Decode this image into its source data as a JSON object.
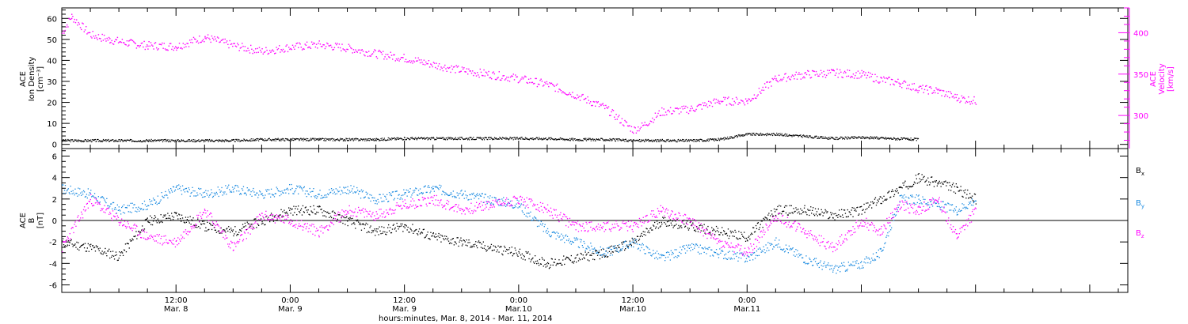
{
  "chart_data": [
    {
      "type": "scatter",
      "panel": "top",
      "ylabel_left": [
        "ACE",
        "Ion Density",
        "[cm⁻³]"
      ],
      "ylabel_right": [
        "ACE",
        "Velocity",
        "[km/s]"
      ],
      "ylim_left": [
        -2,
        65
      ],
      "yticks_left": [
        "0",
        "10",
        "20",
        "30",
        "40",
        "50",
        "60"
      ],
      "ylim_right": [
        260,
        430
      ],
      "yticks_right": [
        "300",
        "350",
        "400"
      ],
      "series": [
        {
          "axis": "left",
          "color": "#000000",
          "x": [
            0,
            3,
            6,
            9,
            12,
            15,
            18,
            21,
            24,
            27,
            30,
            33,
            36,
            39,
            42,
            45,
            48,
            51,
            54,
            57,
            60,
            63,
            66,
            69,
            72,
            75,
            78,
            81,
            84,
            87,
            90
          ],
          "values": [
            2,
            2,
            2,
            2,
            2,
            2,
            2,
            2.5,
            2.5,
            2.5,
            2.5,
            2.5,
            3,
            3,
            3,
            3,
            3,
            3,
            2.5,
            2.5,
            2,
            2,
            2,
            2.5,
            5,
            5,
            4,
            3,
            3.5,
            3,
            2.5
          ]
        },
        {
          "axis": "right",
          "color": "#ff00ff",
          "x": [
            0,
            1,
            3,
            5,
            7,
            9,
            12,
            15,
            18,
            21,
            24,
            27,
            30,
            33,
            36,
            39,
            42,
            45,
            48,
            51,
            54,
            57,
            60,
            61,
            63,
            66,
            69,
            72,
            75,
            78,
            81,
            84,
            86,
            88,
            90,
            92,
            94,
            96
          ],
          "values": [
            400,
            420,
            398,
            392,
            388,
            385,
            384,
            395,
            385,
            378,
            383,
            386,
            382,
            375,
            370,
            362,
            355,
            350,
            345,
            338,
            325,
            310,
            283,
            288,
            305,
            308,
            318,
            318,
            345,
            350,
            352,
            350,
            344,
            340,
            333,
            330,
            322,
            318
          ]
        }
      ]
    },
    {
      "type": "scatter",
      "panel": "bottom",
      "ylabel_left": [
        "ACE",
        "B",
        "[nT]"
      ],
      "ylim": [
        -6.7,
        6.7
      ],
      "yticks": [
        "-6",
        "-4",
        "-2",
        "0",
        "2",
        "4",
        "6"
      ],
      "legend": [
        "Bx",
        "By",
        "Bz"
      ],
      "series": [
        {
          "name": "Bx",
          "color": "#000000",
          "x": [
            0,
            3,
            6,
            9,
            12,
            15,
            18,
            21,
            24,
            27,
            30,
            33,
            36,
            39,
            42,
            45,
            48,
            51,
            54,
            57,
            60,
            63,
            66,
            69,
            72,
            75,
            78,
            81,
            84,
            86,
            88,
            90,
            92,
            94,
            96
          ],
          "values": [
            -2,
            -2.5,
            -3.3,
            0,
            0.5,
            -0.5,
            -1,
            0,
            1,
            1,
            0,
            -1,
            -0.5,
            -1.5,
            -2,
            -2.5,
            -3,
            -4,
            -3.5,
            -3,
            -2,
            0,
            -0.5,
            -1,
            -1.5,
            1,
            1,
            0.5,
            1,
            2,
            3,
            4,
            3.5,
            3,
            2
          ]
        },
        {
          "name": "By",
          "color": "#1a8ae0",
          "x": [
            0,
            3,
            6,
            9,
            12,
            15,
            18,
            21,
            24,
            27,
            30,
            33,
            36,
            39,
            42,
            45,
            48,
            51,
            54,
            57,
            60,
            63,
            66,
            69,
            72,
            75,
            78,
            81,
            84,
            86,
            88,
            90,
            92,
            94,
            96
          ],
          "values": [
            3,
            2.5,
            1,
            1.5,
            3,
            2.5,
            3,
            2.5,
            3,
            2.5,
            3,
            2,
            2.5,
            3,
            2.5,
            2,
            1.5,
            -1,
            -2,
            -3,
            -2,
            -3.5,
            -2.5,
            -3,
            -3.5,
            -2,
            -3.5,
            -4.5,
            -4,
            -3,
            2,
            2,
            1.5,
            1,
            2
          ]
        },
        {
          "name": "Bz",
          "color": "#ff00ff",
          "x": [
            0,
            3,
            6,
            9,
            12,
            15,
            18,
            21,
            24,
            27,
            30,
            33,
            36,
            39,
            42,
            45,
            48,
            51,
            54,
            57,
            60,
            63,
            66,
            69,
            72,
            75,
            78,
            81,
            84,
            86,
            88,
            90,
            92,
            94,
            96
          ],
          "values": [
            -2.5,
            2,
            0,
            -1.5,
            -2,
            1,
            -2.5,
            0.5,
            0,
            -1,
            1,
            0.5,
            1.5,
            2,
            1,
            1.5,
            2,
            1,
            -0.5,
            -0.5,
            -0.5,
            1,
            0,
            -2,
            -3,
            0.5,
            -1,
            -2.5,
            0,
            -1,
            1.5,
            1,
            2,
            -1.5,
            1
          ]
        }
      ]
    }
  ],
  "axis": {
    "x_ticks": [
      {
        "time": "12:00",
        "date": "Mar. 8",
        "x": 12
      },
      {
        "time": "0:00",
        "date": "Mar. 9",
        "x": 24
      },
      {
        "time": "12:00",
        "date": "Mar. 9",
        "x": 36
      },
      {
        "time": "0:00",
        "date": "Mar.10",
        "x": 48
      },
      {
        "time": "12:00",
        "date": "Mar.10",
        "x": 60
      },
      {
        "time": "0:00",
        "date": "Mar.11",
        "x": 72
      }
    ],
    "xlabel": "hours:minutes, Mar.  8, 2014 - Mar. 11, 2014"
  },
  "colors": {
    "density": "#000000",
    "velocity": "#ff00ff",
    "bx": "#000000",
    "by": "#1a8ae0",
    "bz": "#ff00ff"
  }
}
